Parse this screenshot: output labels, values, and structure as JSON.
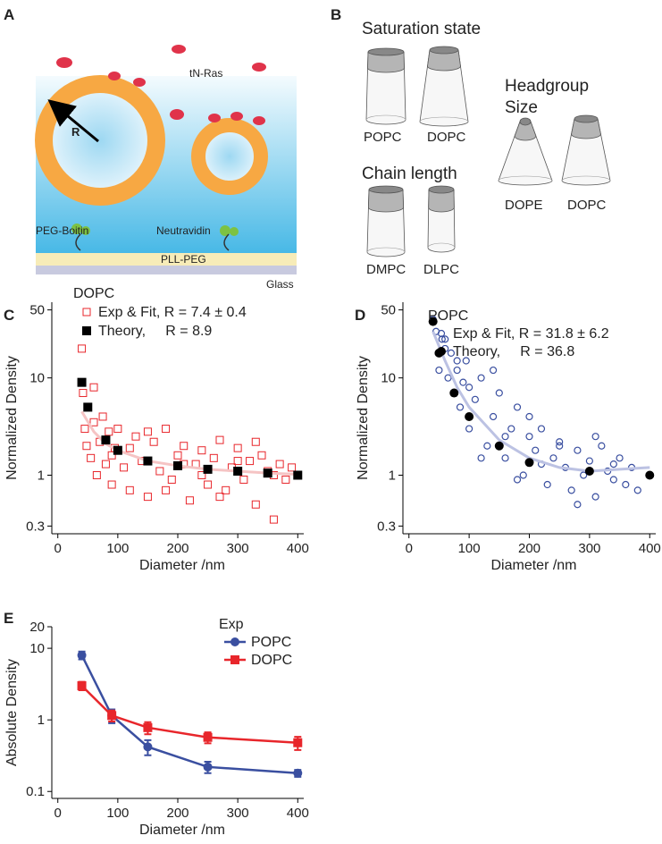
{
  "panels": {
    "A": {
      "label": "A",
      "tn_ras": "tN-Ras",
      "radius": "R",
      "peg_biotin": "PEG-Boitin",
      "neutravidin": "Neutravidin",
      "pll_peg": "PLL-PEG",
      "glass": "Glass"
    },
    "B": {
      "label": "B",
      "saturation": "Saturation state",
      "sat_left": "POPC",
      "sat_right": "DOPC",
      "chain": "Chain length",
      "chain_left": "DMPC",
      "chain_right": "DLPC",
      "headgroup": "Headgroup Size",
      "head_left": "DOPE",
      "head_right": "DOPC"
    }
  },
  "chart_data": [
    {
      "type": "scatter",
      "panel_label": "C",
      "legend_title": "DOPC",
      "xlabel": "Diameter /nm",
      "ylabel": "Normalized Density",
      "yscale": "log",
      "xlim": [
        -10,
        410
      ],
      "ylim": [
        0.25,
        60
      ],
      "xticks": [
        0,
        100,
        200,
        300,
        400
      ],
      "yticks": [
        0.3,
        1,
        10,
        50
      ],
      "series": [
        {
          "name": "Exp & Fit, R = 7.4 ± 0.4",
          "color": "#e8262b",
          "marker": "square-open",
          "x": [
            40,
            42,
            45,
            48,
            50,
            55,
            60,
            65,
            70,
            75,
            80,
            85,
            90,
            95,
            100,
            110,
            120,
            130,
            140,
            150,
            160,
            170,
            180,
            190,
            200,
            210,
            220,
            230,
            240,
            250,
            260,
            270,
            280,
            290,
            300,
            310,
            320,
            330,
            340,
            350,
            360,
            370,
            380,
            390,
            60,
            90,
            120,
            150,
            180,
            210,
            240,
            270,
            300,
            330,
            360
          ],
          "values": [
            20,
            7,
            3,
            2,
            5,
            1.5,
            3.5,
            1,
            2.2,
            4,
            1.3,
            2.8,
            0.8,
            1.9,
            3,
            1.2,
            0.7,
            2.5,
            1.4,
            0.6,
            2.2,
            1.1,
            3,
            0.9,
            1.6,
            2,
            0.55,
            1.3,
            1.8,
            0.8,
            1.5,
            2.3,
            0.7,
            1.2,
            1.9,
            0.9,
            1.4,
            0.5,
            1.6,
            1.1,
            0.35,
            1.3,
            0.9,
            1.2,
            8,
            1.6,
            1.9,
            2.8,
            0.7,
            1.3,
            1.0,
            0.6,
            1.4,
            2.2,
            1.0
          ]
        },
        {
          "color": "#f5c4c4",
          "marker": "line",
          "x": [
            40,
            60,
            80,
            100,
            150,
            200,
            250,
            300,
            350,
            400
          ],
          "values": [
            4.5,
            2.8,
            2.1,
            1.8,
            1.4,
            1.25,
            1.15,
            1.1,
            1.05,
            1.02
          ]
        },
        {
          "name": "Theory,     R = 8.9",
          "color": "#000000",
          "marker": "square",
          "x": [
            40,
            50,
            80,
            100,
            150,
            200,
            250,
            300,
            350,
            400
          ],
          "values": [
            9,
            5,
            2.3,
            1.8,
            1.4,
            1.25,
            1.15,
            1.1,
            1.05,
            1.0
          ]
        }
      ]
    },
    {
      "type": "scatter",
      "panel_label": "D",
      "legend_title": "POPC",
      "xlabel": "Diameter /nm",
      "ylabel": "Normalized Density",
      "yscale": "log",
      "xlim": [
        -10,
        410
      ],
      "ylim": [
        0.25,
        60
      ],
      "xticks": [
        0,
        100,
        200,
        300,
        400
      ],
      "yticks": [
        0.3,
        1,
        10,
        50
      ],
      "series": [
        {
          "name": "Exp & Fit, R = 31.8 ± 6.2",
          "color": "#3a4fa0",
          "marker": "circle-open",
          "x": [
            40,
            45,
            50,
            55,
            60,
            65,
            70,
            75,
            80,
            85,
            90,
            95,
            100,
            110,
            120,
            130,
            140,
            150,
            160,
            170,
            180,
            190,
            200,
            210,
            220,
            230,
            240,
            250,
            260,
            270,
            280,
            290,
            300,
            310,
            320,
            330,
            340,
            350,
            360,
            370,
            380,
            60,
            80,
            100,
            120,
            140,
            160,
            180,
            200,
            220,
            250,
            280,
            310,
            340
          ],
          "values": [
            40,
            30,
            12,
            25,
            20,
            10,
            18,
            7,
            12,
            5,
            9,
            15,
            3,
            6,
            10,
            2,
            4,
            7,
            1.5,
            3,
            5,
            1,
            2.5,
            1.8,
            3,
            0.8,
            1.5,
            2.2,
            1.2,
            0.7,
            1.8,
            1,
            1.4,
            0.6,
            2,
            1.1,
            0.9,
            1.5,
            0.8,
            1.2,
            0.7,
            25,
            15,
            8,
            1.5,
            12,
            2.5,
            0.9,
            4,
            1.3,
            2,
            0.5,
            2.5,
            1.3
          ]
        },
        {
          "color": "#bcc2e3",
          "marker": "line",
          "x": [
            40,
            60,
            80,
            100,
            150,
            200,
            250,
            300,
            350,
            400
          ],
          "values": [
            30,
            15,
            8,
            5,
            2.3,
            1.5,
            1.2,
            1.1,
            1.15,
            1.2
          ]
        },
        {
          "name": "Theory,     R = 36.8",
          "color": "#000000",
          "marker": "circle",
          "x": [
            40,
            50,
            75,
            100,
            150,
            200,
            300,
            400
          ],
          "values": [
            38,
            18,
            7,
            4,
            2,
            1.35,
            1.1,
            1.0
          ]
        }
      ]
    },
    {
      "type": "line",
      "panel_label": "E",
      "legend_title": "Exp",
      "xlabel": "Diameter /nm",
      "ylabel": "Absolute Density",
      "yscale": "log",
      "xlim": [
        -10,
        410
      ],
      "ylim": [
        0.08,
        20
      ],
      "xticks": [
        0,
        100,
        200,
        300,
        400
      ],
      "yticks": [
        0.1,
        1,
        10,
        20
      ],
      "series": [
        {
          "name": "POPC",
          "color": "#3a4fa0",
          "marker": "circle",
          "x": [
            40,
            90,
            150,
            250,
            400
          ],
          "values": [
            8,
            1.15,
            0.42,
            0.22,
            0.18
          ],
          "errors": [
            1,
            0.25,
            0.1,
            0.04,
            0.02
          ]
        },
        {
          "name": "DOPC",
          "color": "#e8262b",
          "marker": "square",
          "x": [
            40,
            90,
            150,
            250,
            400
          ],
          "values": [
            3,
            1.15,
            0.78,
            0.57,
            0.48
          ],
          "errors": [
            0.4,
            0.2,
            0.15,
            0.1,
            0.1
          ]
        }
      ]
    }
  ]
}
